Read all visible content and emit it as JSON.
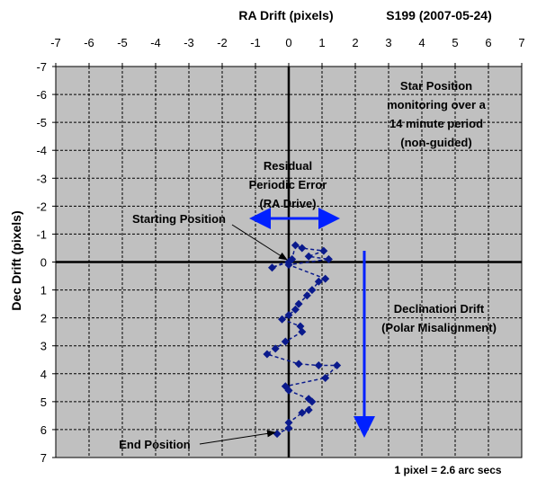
{
  "chart_data": {
    "type": "scatter",
    "title": "RA Drift (pixels)",
    "subtitle": "S199 (2007-05-24)",
    "xlabel": "RA Drift (pixels)",
    "ylabel": "Dec Drift (pixels)",
    "xlim": [
      -7,
      7
    ],
    "ylim": [
      -7,
      7
    ],
    "y_reversed": true,
    "x_axis_position": "top",
    "grid": true,
    "x_ticks": [
      "-7",
      "-6",
      "-5",
      "-4",
      "-3",
      "-2",
      "-1",
      "0",
      "1",
      "2",
      "3",
      "4",
      "5",
      "6",
      "7"
    ],
    "y_ticks": [
      "-7",
      "-6",
      "-5",
      "-4",
      "-3",
      "-2",
      "-1",
      "0",
      "1",
      "2",
      "3",
      "4",
      "5",
      "6",
      "7"
    ],
    "series": [
      {
        "marker": "diamond",
        "line": "dashed",
        "color": "#0a1a8c",
        "points": [
          [
            0,
            0
          ],
          [
            -0.5,
            0.2
          ],
          [
            0.1,
            -0.1
          ],
          [
            0.2,
            -0.6
          ],
          [
            0.4,
            -0.5
          ],
          [
            1.05,
            -0.4
          ],
          [
            0.6,
            -0.2
          ],
          [
            1.2,
            -0.1
          ],
          [
            0,
            0.1
          ],
          [
            1.1,
            0.6
          ],
          [
            0.9,
            0.7
          ],
          [
            0.7,
            1.0
          ],
          [
            0.55,
            1.2
          ],
          [
            0.3,
            1.5
          ],
          [
            0.2,
            1.7
          ],
          [
            0,
            1.9
          ],
          [
            -0.2,
            2.05
          ],
          [
            0.35,
            2.3
          ],
          [
            0.4,
            2.5
          ],
          [
            -0.1,
            2.85
          ],
          [
            -0.4,
            3.1
          ],
          [
            -0.65,
            3.3
          ],
          [
            0.3,
            3.65
          ],
          [
            0.9,
            3.7
          ],
          [
            1.45,
            3.7
          ],
          [
            1.1,
            4.15
          ],
          [
            -0.1,
            4.45
          ],
          [
            0,
            4.6
          ],
          [
            0.6,
            4.9
          ],
          [
            0.7,
            5.0
          ],
          [
            0.6,
            5.3
          ],
          [
            0.4,
            5.4
          ],
          [
            0,
            5.75
          ],
          [
            0,
            5.95
          ],
          [
            -0.35,
            6.15
          ]
        ]
      }
    ],
    "annotations": [
      {
        "lines": [
          "Star Position",
          "monitoring over a",
          "14 minute period",
          "(non-guided)"
        ]
      },
      {
        "lines": [
          "Residual",
          "Periodic Error",
          "(RA Drive)"
        ]
      },
      {
        "lines": [
          "Starting Position"
        ]
      },
      {
        "lines": [
          "Declination Drift",
          "(Polar Misalignment)"
        ]
      },
      {
        "lines": [
          "End Position"
        ]
      }
    ],
    "arrow_color": "#0020ff",
    "footer": "1 pixel = 2.6 arc secs"
  }
}
